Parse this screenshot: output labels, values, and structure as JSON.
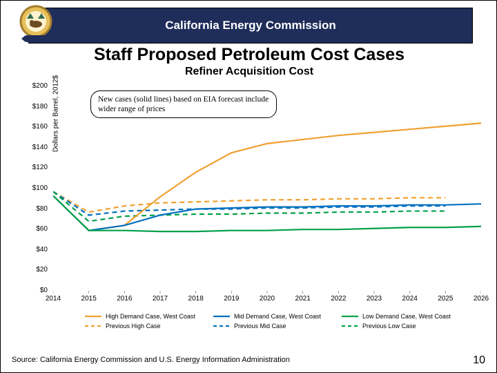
{
  "header": {
    "org": "California Energy Commission"
  },
  "title": "Staff Proposed Petroleum Cost Cases",
  "subtitle": "Refiner Acquisition Cost",
  "callout": "New cases (solid lines) based on EIA forecast include wider range of prices",
  "chart": {
    "type": "line",
    "ylabel": "Dollars per Barrel, 2012$",
    "ylim": [
      0,
      200
    ],
    "ytick_step": 20,
    "yticks_labels": [
      "$0",
      "$20",
      "$40",
      "$60",
      "$80",
      "$100",
      "$120",
      "$140",
      "$160",
      "$180",
      "$200"
    ],
    "xlim": [
      2014,
      2026
    ],
    "xticks": [
      2014,
      2015,
      2016,
      2017,
      2018,
      2019,
      2020,
      2021,
      2022,
      2023,
      2024,
      2025,
      2026
    ],
    "background_color": "#ffffff",
    "series": {
      "high_demand": {
        "label": "High Demand Case, West Coast",
        "color": "#f0a030",
        "dash": "solid",
        "width": 2.2,
        "x": [
          2014,
          2015,
          2016,
          2017,
          2018,
          2019,
          2020,
          2021,
          2022,
          2023,
          2024,
          2025,
          2026
        ],
        "y": [
          93,
          59,
          64,
          92,
          116,
          135,
          144,
          148,
          152,
          155,
          158,
          161,
          164
        ]
      },
      "mid_demand": {
        "label": "Mid Demand Case, West Coast",
        "color": "#0070c0",
        "dash": "solid",
        "width": 2.2,
        "x": [
          2014,
          2015,
          2016,
          2017,
          2018,
          2019,
          2020,
          2021,
          2022,
          2023,
          2024,
          2025,
          2026
        ],
        "y": [
          93,
          59,
          64,
          74,
          80,
          81,
          82,
          82,
          83,
          83,
          84,
          84,
          85
        ]
      },
      "low_demand": {
        "label": "Low Demand Case, West Coast",
        "color": "#00a04a",
        "dash": "solid",
        "width": 2.2,
        "x": [
          2014,
          2015,
          2016,
          2017,
          2018,
          2019,
          2020,
          2021,
          2022,
          2023,
          2024,
          2025,
          2026
        ],
        "y": [
          93,
          59,
          59,
          58,
          58,
          59,
          59,
          60,
          60,
          61,
          62,
          62,
          63
        ]
      },
      "prev_high": {
        "label": "Previous High Case",
        "color": "#f0a030",
        "dash": "dash",
        "width": 2.2,
        "x": [
          2014,
          2015,
          2016,
          2017,
          2018,
          2019,
          2020,
          2021,
          2022,
          2023,
          2024,
          2025
        ],
        "y": [
          97,
          77,
          83,
          86,
          87,
          88,
          89,
          89,
          90,
          90,
          91,
          91
        ]
      },
      "prev_mid": {
        "label": "Previous Mid Case",
        "color": "#0070c0",
        "dash": "dash",
        "width": 2.2,
        "x": [
          2014,
          2015,
          2016,
          2017,
          2018,
          2019,
          2020,
          2021,
          2022,
          2023,
          2024,
          2025
        ],
        "y": [
          97,
          74,
          78,
          79,
          80,
          80,
          81,
          81,
          82,
          82,
          83,
          83
        ]
      },
      "prev_low": {
        "label": "Previous Low Case",
        "color": "#00a04a",
        "dash": "dash",
        "width": 2.2,
        "x": [
          2014,
          2015,
          2016,
          2017,
          2018,
          2019,
          2020,
          2021,
          2022,
          2023,
          2024,
          2025
        ],
        "y": [
          97,
          68,
          73,
          74,
          75,
          75,
          76,
          76,
          77,
          77,
          78,
          78
        ]
      }
    }
  },
  "legend_rows": [
    [
      "high_demand",
      "mid_demand",
      "low_demand"
    ],
    [
      "prev_high",
      "prev_mid",
      "prev_low"
    ]
  ],
  "source": "Source: California Energy Commission and U.S. Energy Information Administration",
  "page_number": "10",
  "seal_colors": {
    "ring": "#d4a93f",
    "field": "#e8c05a",
    "bear": "#6b4a24",
    "banner": "#1f2d5a"
  }
}
